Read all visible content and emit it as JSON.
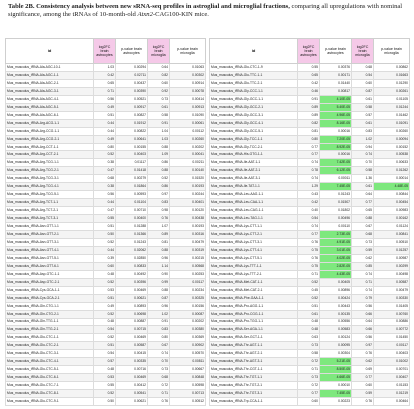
{
  "caption": {
    "label": "Table 2B.",
    "title": "Consistency analysis between new sRNA-seq profiles in astroglial and microglial fractions,",
    "line2": "comparing all upregulations with nominal significance, among the tRNAs of 10-month-old",
    "gene": "Atxn2",
    "line3a": "-CAG100-KIN",
    "line3b": "mice."
  },
  "headers": {
    "id": "id",
    "fc": "log2FC brain astrocytes",
    "pv_astro": "p-value brain astrocytes",
    "fc_micro": "log2FC brain microglia",
    "pv_micro": "p-value brain microglia"
  },
  "left_rows": [
    [
      "Mus_musculus_tRNA-Ala-AGC-10-1",
      "1.03",
      "0.00294",
      "0.64",
      "0.01063"
    ],
    [
      "Mus_musculus_tRNA-Ala-AGC-1-1",
      "0.42",
      "0.02711",
      "0.82",
      "0.00302"
    ],
    [
      "Mus_musculus_tRNA-Ala-AGC-2-1",
      "0.65",
      "0.00437",
      "0.60",
      "0.00914"
    ],
    [
      "Mus_musculus_tRNA-Ala-AGC-3-1",
      "0.71",
      "0.00390",
      "0.92",
      "0.00078"
    ],
    [
      "Mus_musculus_tRNA-Ala-AGC-4-1",
      "0.56",
      "0.00521",
      "0.73",
      "0.00414"
    ],
    [
      "Mus_musculus_tRNA-Ala-AGC-5-1",
      "0.49",
      "0.00917",
      "0.61",
      "0.00913"
    ],
    [
      "Mus_musculus_tRNA-Ala-AGC-6-1",
      "0.51",
      "0.00827",
      "0.58",
      "0.01090"
    ],
    [
      "Mus_musculus_tRNA-Arg-ACG-1-1",
      "0.44",
      "0.01912",
      "0.91",
      "0.00061"
    ],
    [
      "Mus_musculus_tRNA-Arg-CCG-1-1",
      "0.44",
      "0.00822",
      "1.04",
      "0.00112"
    ],
    [
      "Mus_musculus_tRNA-Arg-CCG-2-1",
      "0.49",
      "0.00641",
      "1.03",
      "0.00260"
    ],
    [
      "Mus_musculus_tRNA-Arg-CCT-1-1",
      "0.80",
      "0.00155",
      "0.88",
      "0.00202"
    ],
    [
      "Mus_musculus_tRNA-Arg-CCT-2-1",
      "0.52",
      "0.00403",
      "1.09",
      "0.00041"
    ],
    [
      "Mus_musculus_tRNA-Arg-TCG-1-1",
      "0.38",
      "0.01117",
      "0.86",
      "0.00211"
    ],
    [
      "Mus_musculus_tRNA-Arg-TCG-2-1",
      "0.47",
      "0.01418",
      "0.88",
      "0.00140"
    ],
    [
      "Mus_musculus_tRNA-Arg-TCG-3-1",
      "0.68",
      "0.00279",
      "0.52",
      "0.01520"
    ],
    [
      "Mus_musculus_tRNA-Arg-TCG-4-1",
      "0.38",
      "0.01864",
      "0.86",
      "0.00193"
    ],
    [
      "Mus_musculus_tRNA-Arg-TCG-5-1",
      "0.56",
      "0.00593",
      "0.97",
      "0.00244"
    ],
    [
      "Mus_musculus_tRNA-Arg-TCT-1-1",
      "0.44",
      "0.01104",
      "0.83",
      "0.00401"
    ],
    [
      "Mus_musculus_tRNA-Arg-TCT-2-1",
      "0.47",
      "0.00710",
      "0.98",
      "0.00120"
    ],
    [
      "Mus_musculus_tRNA-Arg-TCT-3-1",
      "0.55",
      "0.00400",
      "0.76",
      "0.00438"
    ],
    [
      "Mus_musculus_tRNA-Asn-GTT-1-1",
      "0.51",
      "0.01288",
      "1.07",
      "0.00193"
    ],
    [
      "Mus_musculus_tRNA-Asn-GTT-2-1",
      "0.50",
      "0.01366",
      "0.89",
      "0.00316"
    ],
    [
      "Mus_musculus_tRNA-Asn-GTT-3-1",
      "0.52",
      "0.01243",
      "0.81",
      "0.00479"
    ],
    [
      "Mus_musculus_tRNA-Asn-GTT-4-1",
      "0.44",
      "0.02062",
      "0.88",
      "0.00319"
    ],
    [
      "Mus_musculus_tRNA-Asn-GTT-5-1",
      "0.39",
      "0.02850",
      "0.96",
      "0.00215"
    ],
    [
      "Mus_musculus_tRNA-Asn-GTT-6-1",
      "0.60",
      "0.00833",
      "1.14",
      "0.00568"
    ],
    [
      "Mus_musculus_tRNA-Asp-GTC-1-1",
      "0.48",
      "0.00492",
      "0.90",
      "0.00253"
    ],
    [
      "Mus_musculus_tRNA-Asp-GTC-2-1",
      "0.52",
      "0.00396",
      "0.99",
      "0.00117"
    ],
    [
      "Mus_musculus_tRNA-Cys-GCA-1-1",
      "0.53",
      "0.00469",
      "0.88",
      "0.00234"
    ],
    [
      "Mus_musculus_tRNA-Cys-GCA-2-1",
      "0.51",
      "0.00621",
      "0.87",
      "0.00325"
    ],
    [
      "Mus_musculus_tRNA-Gln-CTG-1-1",
      "0.49",
      "0.00893",
      "0.96",
      "0.00156"
    ],
    [
      "Mus_musculus_tRNA-Gln-CTG-2-1",
      "0.52",
      "0.00698",
      "1.02",
      "0.00087"
    ],
    [
      "Mus_musculus_tRNA-Gln-TTG-1-1",
      "0.48",
      "0.00887",
      "0.91",
      "0.00202"
    ],
    [
      "Mus_musculus_tRNA-Gln-TTG-2-1",
      "0.54",
      "0.00715",
      "0.83",
      "0.00380"
    ],
    [
      "Mus_musculus_tRNA-Glu-CTC-1-1",
      "0.52",
      "0.00469",
      "0.80",
      "0.00369"
    ],
    [
      "Mus_musculus_tRNA-Glu-CTC-2-1",
      "0.51",
      "0.00587",
      "0.67",
      "0.00902"
    ],
    [
      "Mus_musculus_tRNA-Glu-CTC-3-1",
      "0.54",
      "0.00415",
      "0.74",
      "0.00570"
    ],
    [
      "Mus_musculus_tRNA-Glu-CTC-4-1",
      "0.57",
      "0.00335",
      "0.70",
      "0.00811"
    ],
    [
      "Mus_musculus_tRNA-Glu-CTC-5-1",
      "0.48",
      "0.00716",
      "0.73",
      "0.00667"
    ],
    [
      "Mus_musculus_tRNA-Glu-CTC-6-1",
      "0.53",
      "0.00469",
      "0.68",
      "0.00848"
    ],
    [
      "Mus_musculus_tRNA-Glu-CTC-7-1",
      "0.55",
      "0.00412",
      "0.72",
      "0.00598"
    ],
    [
      "Mus_musculus_tRNA-Glu-CTC-8-1",
      "0.52",
      "0.00541",
      "0.71",
      "0.00713"
    ],
    [
      "Mus_musculus_tRNA-Glu-CTC-9-1",
      "0.50",
      "0.00621",
      "0.76",
      "0.00512"
    ]
  ],
  "right_rows": [
    [
      "Mus_musculus_tRNA-Glu-CTC-1-9",
      "0.55",
      "0.00376",
      "0.68",
      "0.00862"
    ],
    [
      "Mus_musculus_tRNA-Glu-TTC-1-1",
      "0.65",
      "0.00171",
      "0.54",
      "0.01663"
    ],
    [
      "Mus_musculus_tRNA-Glu-TTC-2-1",
      "0.42",
      "0.01440",
      "0.60",
      "0.01290"
    ],
    [
      "Mus_musculus_tRNA-Gly-CCC-1-1",
      "0.46",
      "0.00817",
      "0.87",
      "0.00261"
    ],
    [
      "Mus_musculus_tRNA-Gly-GCC-1-1",
      "0.91",
      "4.10E-05",
      "0.61",
      "0.01105"
    ],
    [
      "Mus_musculus_tRNA-Gly-GCC-2-1",
      "0.89",
      "5.40E-05",
      "0.58",
      "0.01244"
    ],
    [
      "Mus_musculus_tRNA-Gly-GCC-3-1",
      "0.89",
      "4.96E-05",
      "0.57",
      "0.01462"
    ],
    [
      "Mus_musculus_tRNA-Gly-GCC-4-1",
      "0.82",
      "8.16E-05",
      "0.61",
      "0.01091"
    ],
    [
      "Mus_musculus_tRNA-Gly-GCC-5-1",
      "0.81",
      "0.00016",
      "0.83",
      "0.00260"
    ],
    [
      "Mus_musculus_tRNA-Gly-TCC-1-1",
      "0.80",
      "7.20E-05",
      "1.02",
      "0.00094"
    ],
    [
      "Mus_musculus_tRNA-Gly-TCC-2-1",
      "0.77",
      "8.92E-05",
      "0.94",
      "0.00152"
    ],
    [
      "Mus_musculus_tRNA-His-GTG-1-1",
      "0.77",
      "0.00016",
      "0.74",
      "0.00538"
    ],
    [
      "Mus_musculus_tRNA-Ile-AAT-1-1",
      "0.74",
      "7.42E-05",
      "0.70",
      "0.00633"
    ],
    [
      "Mus_musculus_tRNA-Ile-AAT-2-1",
      "0.78",
      "6.12E-05",
      "0.58",
      "0.01262"
    ],
    [
      "Mus_musculus_tRNA-Ile-AAT-3-1",
      "0.74",
      "0.00011",
      "1.36",
      "0.00014"
    ],
    [
      "Mus_musculus_tRNA-Ile-TAT-1-1",
      "1.29",
      "7.45E-05",
      "0.61",
      "4.48E-05"
    ],
    [
      "Mus_musculus_tRNA-Leu-AAG-1-1",
      "0.43",
      "0.01243",
      "0.64",
      "0.00844"
    ],
    [
      "Mus_musculus_tRNA-Leu-CAA-1-1",
      "0.42",
      "0.01507",
      "0.77",
      "0.00454"
    ],
    [
      "Mus_musculus_tRNA-Leu-CAG-1-1",
      "0.40",
      "0.01802",
      "0.65",
      "0.00983"
    ],
    [
      "Mus_musculus_tRNA-Leu-TAG-1-1",
      "0.54",
      "0.00496",
      "0.88",
      "0.00162"
    ],
    [
      "Mus_musculus_tRNA-Lys-CTT-1-1",
      "0.74",
      "0.00110",
      "0.67",
      "0.01124"
    ],
    [
      "Mus_musculus_tRNA-Lys-CTT-2-1",
      "0.77",
      "2.73E-05",
      "0.68",
      "0.00841"
    ],
    [
      "Mus_musculus_tRNA-Lys-CTT-3-1",
      "0.76",
      "4.91E-05",
      "0.73",
      "0.00510"
    ],
    [
      "Mus_musculus_tRNA-Lys-CTT-4-1",
      "0.75",
      "3.01E-05",
      "0.59",
      "0.01257"
    ],
    [
      "Mus_musculus_tRNA-Lys-CTT-5-1",
      "0.76",
      "4.02E-05",
      "0.62",
      "0.00987"
    ],
    [
      "Mus_musculus_tRNA-Lys-TTT-1-1",
      "0.75",
      "2.82E-05",
      "0.85",
      "0.00299"
    ],
    [
      "Mus_musculus_tRNA-Lys-TTT-2-1",
      "0.71",
      "4.43E-05",
      "0.74",
      "0.00498"
    ],
    [
      "Mus_musculus_tRNA-Met-CAT-1-1",
      "0.52",
      "0.00405",
      "0.71",
      "0.00587"
    ],
    [
      "Mus_musculus_tRNA-Met-CAT-2-1",
      "0.45",
      "0.00896",
      "0.74",
      "0.00479"
    ],
    [
      "Mus_musculus_tRNA-Phe-GAA-1-1",
      "0.52",
      "0.00424",
      "0.79",
      "0.00330"
    ],
    [
      "Mus_musculus_tRNA-Pro-AGG-1-1",
      "0.51",
      "0.00443",
      "0.56",
      "0.01405"
    ],
    [
      "Mus_musculus_tRNA-Pro-CGG-1-1",
      "0.61",
      "0.00135",
      "0.66",
      "0.00760"
    ],
    [
      "Mus_musculus_tRNA-Pro-TGG-1-1",
      "0.48",
      "0.00556",
      "0.64",
      "0.00886"
    ],
    [
      "Mus_musculus_tRNA-Ser-AGA-1-1",
      "0.48",
      "0.00583",
      "0.66",
      "0.00772"
    ],
    [
      "Mus_musculus_tRNA-Ser-GCT-1-1",
      "0.63",
      "0.00124",
      "0.56",
      "0.01450"
    ],
    [
      "Mus_musculus_tRNA-Thr-AGT-1-1",
      "0.73",
      "0.00095",
      "0.97",
      "0.00117"
    ],
    [
      "Mus_musculus_tRNA-Thr-AGT-2-1",
      "0.58",
      "0.00304",
      "0.76",
      "0.00403"
    ],
    [
      "Mus_musculus_tRNA-Thr-AGT-3-1",
      "0.72",
      "5.21E-05",
      "0.62",
      "0.01002"
    ],
    [
      "Mus_musculus_tRNA-Thr-CGT-1-1",
      "0.71",
      "8.50E-05",
      "0.69",
      "0.00701"
    ],
    [
      "Mus_musculus_tRNA-Thr-TGT-1-1",
      "0.73",
      "4.66E-05",
      "0.77",
      "0.00407"
    ],
    [
      "Mus_musculus_tRNA-Thr-TGT-2-1",
      "0.72",
      "0.00010",
      "0.60",
      "0.01153"
    ],
    [
      "Mus_musculus_tRNA-Thr-TGT-3-1",
      "0.77",
      "7.45E-05",
      "0.59",
      "0.01219"
    ],
    [
      "Mus_musculus_tRNA-Trp-CCA-1-1",
      "0.60",
      "0.00223",
      "0.76",
      "0.00464"
    ]
  ],
  "highlight_color": "#7ee87e",
  "header_pink": "#f5c9e8"
}
